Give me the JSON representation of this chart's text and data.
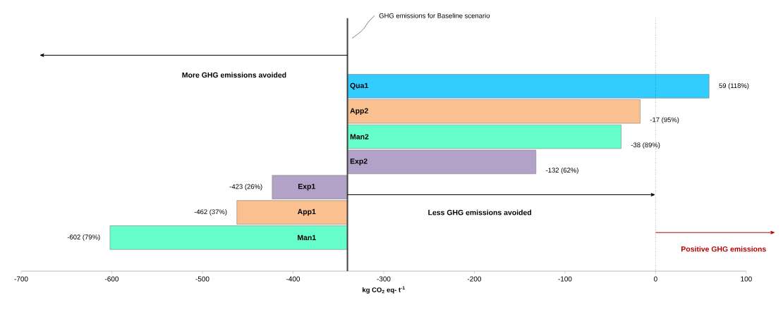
{
  "chart_data": {
    "type": "bar",
    "orientation": "horizontal",
    "xlabel": "kg CO$_{2}$ eq- t$^{-1}$",
    "categories": [
      "Qua1",
      "App2",
      "Man2",
      "Exp2",
      "Exp1",
      "App1",
      "Man1"
    ],
    "base": [
      -340,
      -340,
      -340,
      -340,
      -340,
      -340,
      -340
    ],
    "values": [
      399,
      323,
      302,
      208,
      -83,
      -122,
      -262
    ],
    "colors": [
      "#33ccff",
      "#fac090",
      "#66ffcc",
      "#b3a2c7",
      "#b3a2c7",
      "#fac090",
      "#66ffcc"
    ],
    "xlim": [
      -700,
      100
    ],
    "xticks": [
      -700,
      -600,
      -500,
      -400,
      -300,
      -200,
      -100,
      0,
      100
    ],
    "ref_lines": [
      {
        "axis": "x",
        "value": -340,
        "label": "GHG emissions for Baseline scenario",
        "color": "#404040"
      },
      {
        "axis": "x",
        "value": 0,
        "line_style": "dotted",
        "color": "#000000"
      }
    ],
    "annotations": [
      "More GHG emissions avoided",
      "Less GHG emissions avoided",
      "Positive GHG emissions",
      {
        "text": "59 (118%)",
        "x": 59,
        "y": "Qua1"
      },
      {
        "text": "-17 (95%)",
        "x": -17,
        "y": "App2"
      },
      {
        "text": "-38 (89%)",
        "x": -38,
        "y": "Man2"
      },
      {
        "text": "-132 (62%)",
        "x": -132,
        "y": "Exp2"
      },
      {
        "text": "-423 (26%)",
        "x": -423,
        "y": "Exp1"
      },
      {
        "text": "-462 (37%)",
        "x": -462,
        "y": "App1"
      },
      {
        "text": "-602 (79%)",
        "x": -602,
        "y": "Man1"
      }
    ]
  }
}
